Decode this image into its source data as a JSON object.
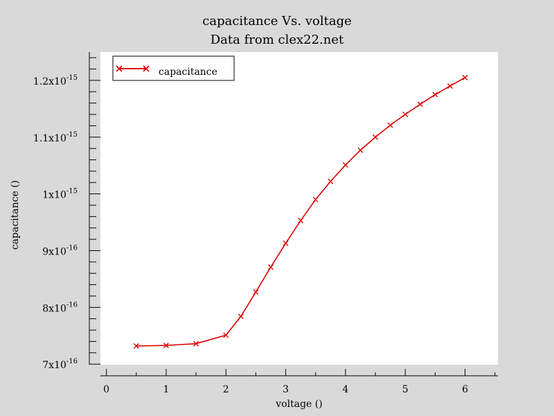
{
  "chart_data": {
    "type": "line",
    "title": "capacitance Vs. voltage",
    "subtitle": "Data from clex22.net",
    "xlabel": "voltage ()",
    "ylabel": "capacitance ()",
    "xlim": [
      -0.1,
      6.55
    ],
    "ylim": [
      6.99e-16,
      1.25e-15
    ],
    "x_ticks": [
      0,
      1,
      2,
      3,
      4,
      5,
      6
    ],
    "y_ticks": [
      {
        "value": 7e-16,
        "mantissa": "7x10",
        "exponent": "-16"
      },
      {
        "value": 8e-16,
        "mantissa": "8x10",
        "exponent": "-16"
      },
      {
        "value": 9e-16,
        "mantissa": "9x10",
        "exponent": "-16"
      },
      {
        "value": 1e-15,
        "mantissa": "1x10",
        "exponent": "-15"
      },
      {
        "value": 1.1e-15,
        "mantissa": "1.1x10",
        "exponent": "-15"
      },
      {
        "value": 1.2e-15,
        "mantissa": "1.2x10",
        "exponent": "-15"
      }
    ],
    "grid": false,
    "legend_position": "top-left",
    "series": [
      {
        "name": "capacitance",
        "color": "#dd0000",
        "marker": "x",
        "x": [
          0.5,
          1.0,
          1.5,
          2.0,
          2.25,
          2.5,
          2.75,
          3.0,
          3.25,
          3.5,
          3.75,
          4.0,
          4.25,
          4.5,
          4.75,
          5.0,
          5.25,
          5.5,
          5.75,
          6.0
        ],
        "y": [
          7.32e-16,
          7.33e-16,
          7.36e-16,
          7.51e-16,
          7.84e-16,
          8.27e-16,
          8.71e-16,
          9.13e-16,
          9.53e-16,
          9.9e-16,
          1.022e-15,
          1.051e-15,
          1.077e-15,
          1.1e-15,
          1.121e-15,
          1.14e-15,
          1.158e-15,
          1.175e-15,
          1.19e-15,
          1.205e-15
        ]
      }
    ]
  }
}
